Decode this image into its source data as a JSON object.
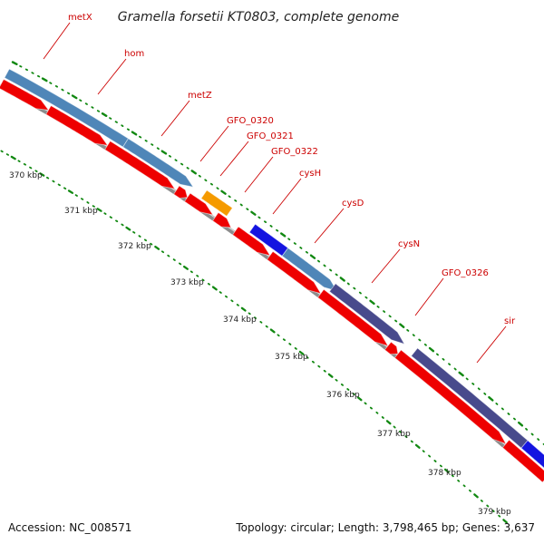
{
  "title": "Gramella forsetii KT0803, complete genome",
  "footer": {
    "accession": "Accession: NC_008571",
    "topology": "Topology: circular; Length: 3,798,465 bp; Genes: 3,637"
  },
  "colors": {
    "forward_steelblue": "#4f86b8",
    "forward_purple": "#484a8c",
    "forward_blue": "#1414e0",
    "forward_orange": "#f59a00",
    "reverse_red": "#ee0000",
    "backbone": "#8c8c8c",
    "tick": "#118811",
    "label": "#cc0000"
  },
  "gene_labels": [
    "metX",
    "hom",
    "metZ",
    "GFO_0320",
    "GFO_0321",
    "GFO_0322",
    "cysH",
    "cysD",
    "cysN",
    "GFO_0326",
    "sir"
  ],
  "scale_labels": [
    "370 kbp",
    "371 kbp",
    "372 kbp",
    "373 kbp",
    "374 kbp",
    "375 kbp",
    "376 kbp",
    "377 kbp",
    "378 kbp",
    "379 kbp"
  ]
}
